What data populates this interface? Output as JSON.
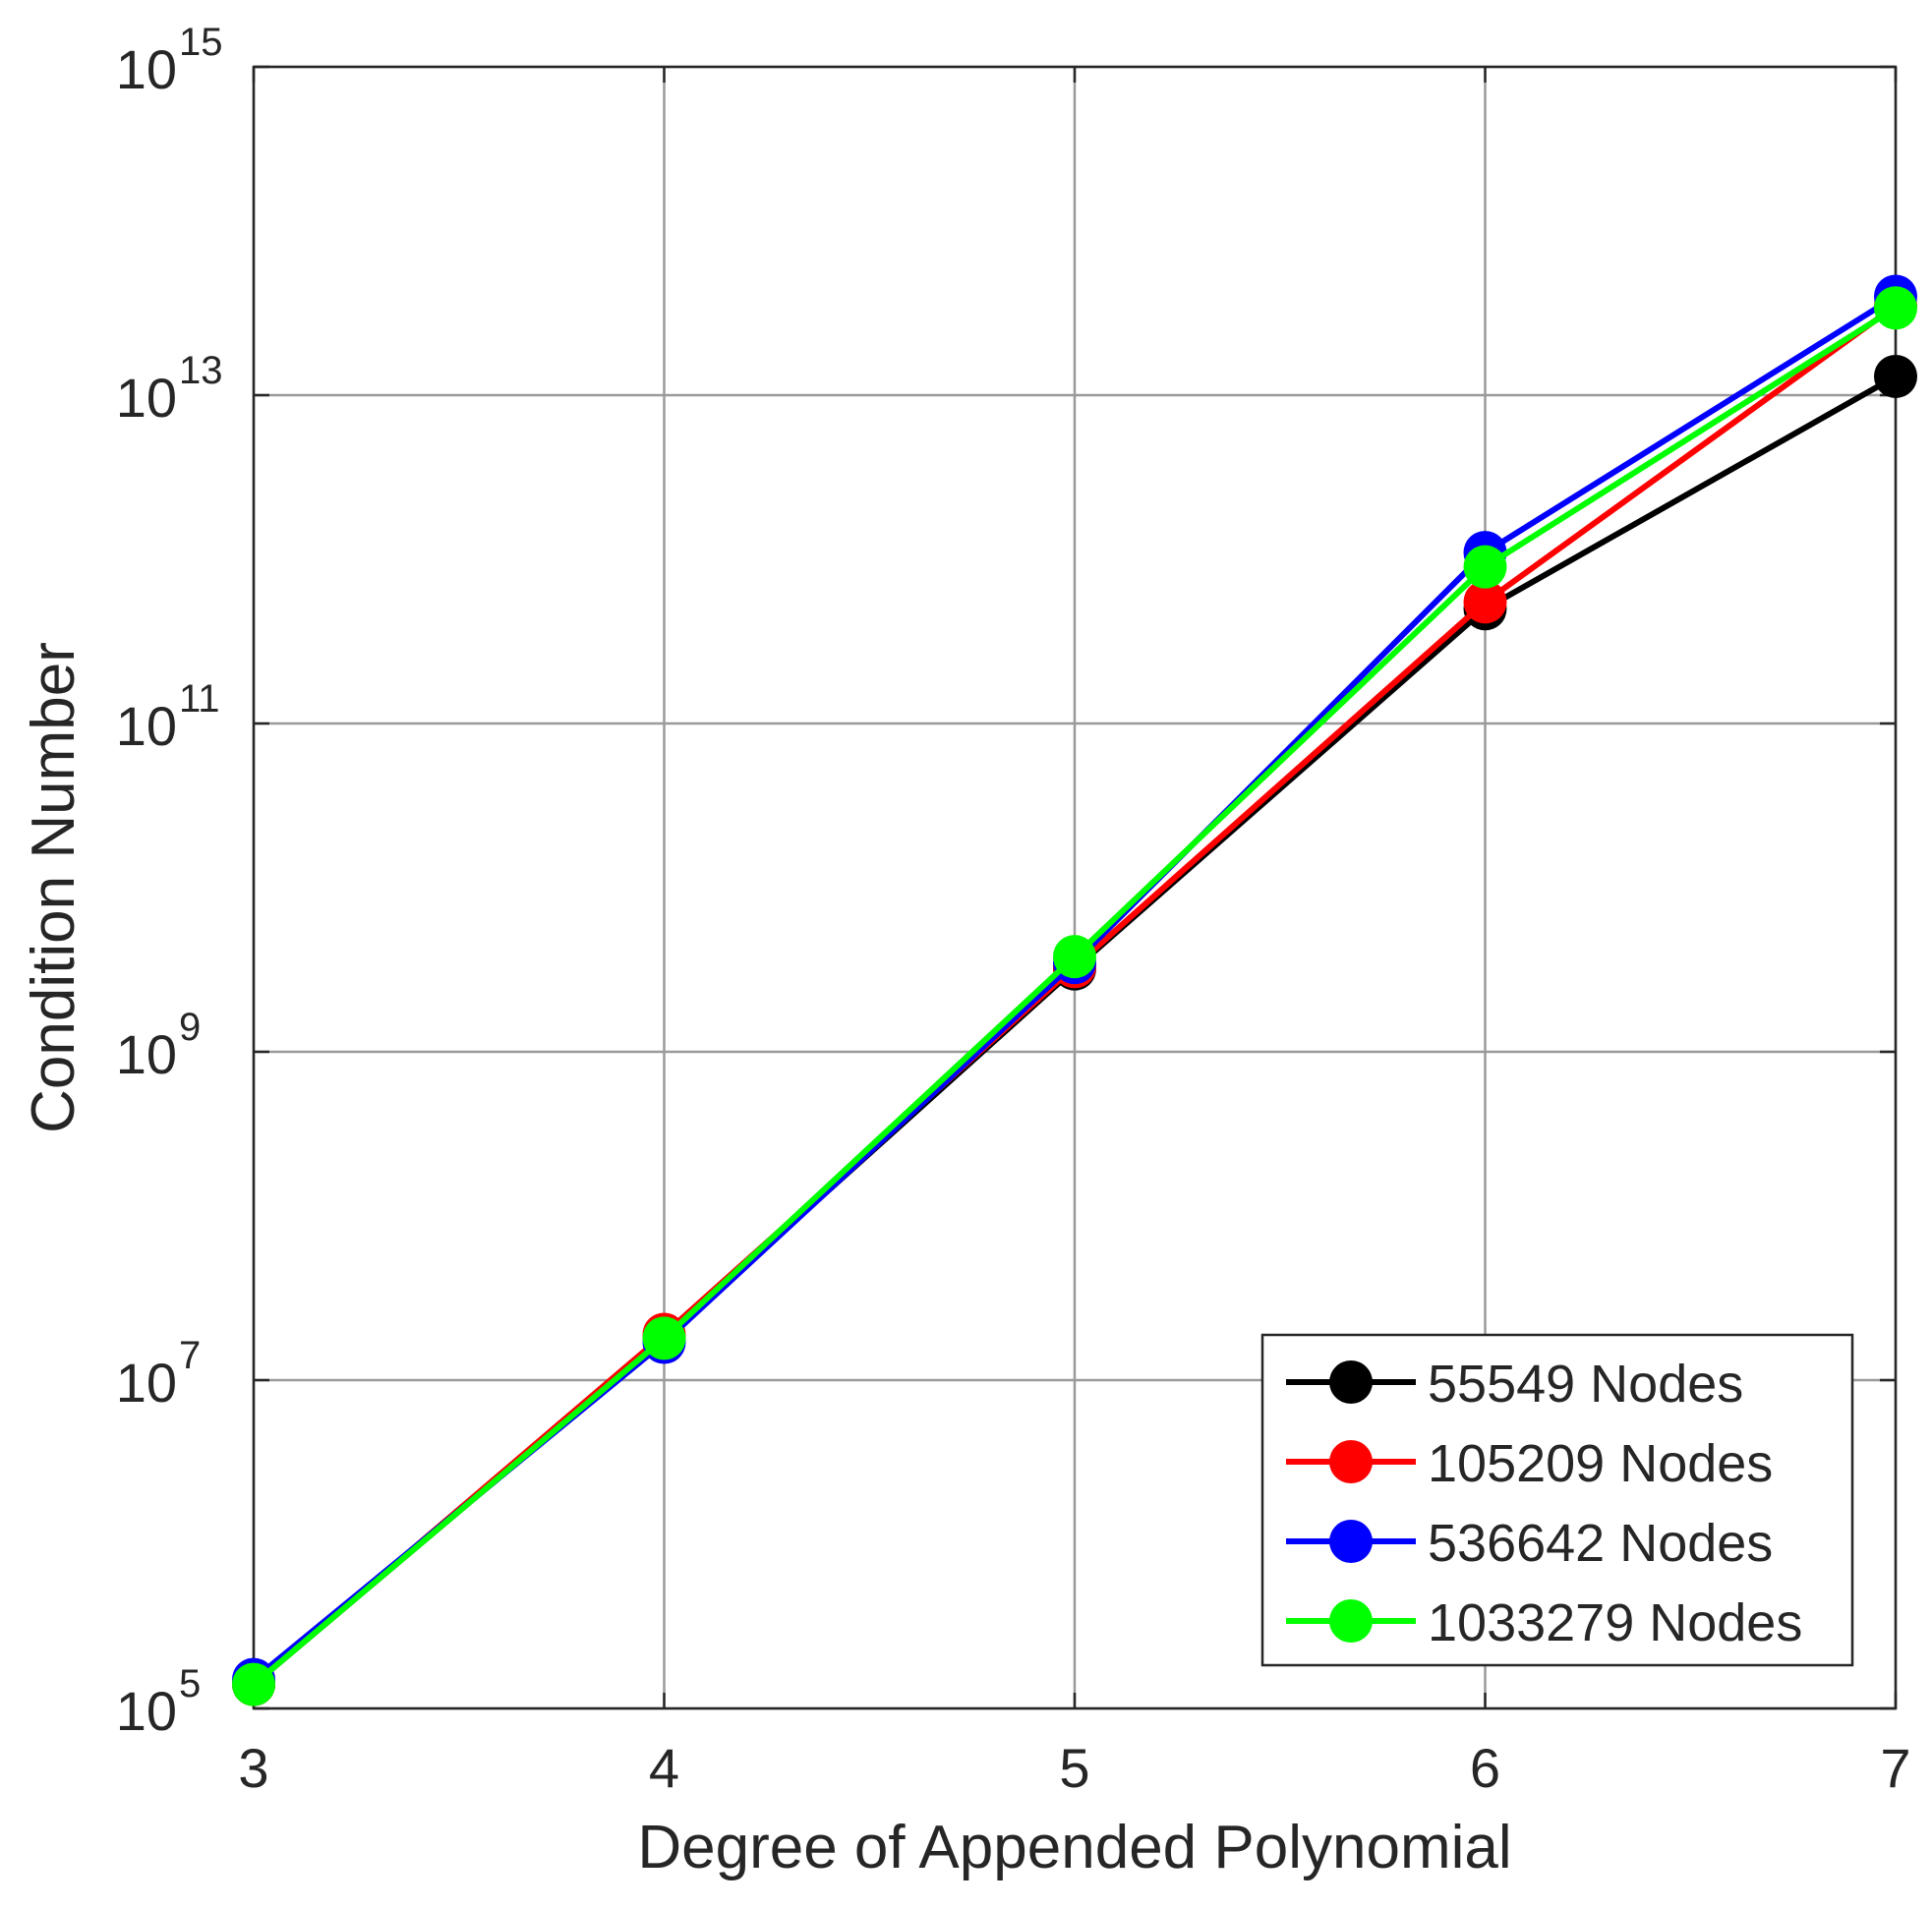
{
  "chart_data": {
    "type": "line",
    "title": "",
    "xlabel": "Degree of Appended Polynomial",
    "ylabel": "Condition Number",
    "x": [
      3,
      4,
      5,
      6,
      7
    ],
    "xticks": [
      3,
      4,
      5,
      6,
      7
    ],
    "xlim": [
      3,
      7
    ],
    "yscale": "log",
    "ylim": [
      100000,
      1000000000000000
    ],
    "yticks": [
      {
        "value": 100000,
        "base": "10",
        "exp": "5"
      },
      {
        "value": 10000000,
        "base": "10",
        "exp": "7"
      },
      {
        "value": 1000000000,
        "base": "10",
        "exp": "9"
      },
      {
        "value": 100000000000,
        "base": "10",
        "exp": "11"
      },
      {
        "value": 10000000000000,
        "base": "10",
        "exp": "13"
      },
      {
        "value": 1000000000000000,
        "base": "10",
        "exp": "15"
      }
    ],
    "grid": true,
    "legend_position": "bottom-right",
    "series": [
      {
        "name": "55549 Nodes",
        "color": "#000000",
        "values": [
          140000,
          18000000,
          3200000000,
          500000000000,
          13000000000000
        ]
      },
      {
        "name": "105209 Nodes",
        "color": "#ff0000",
        "values": [
          140000,
          19000000,
          3300000000,
          550000000000,
          35000000000000
        ]
      },
      {
        "name": "536642 Nodes",
        "color": "#0000ff",
        "values": [
          150000,
          17000000,
          3500000000,
          1100000000000,
          40000000000000
        ]
      },
      {
        "name": "1033279 Nodes",
        "color": "#00ff00",
        "values": [
          140000,
          18000000,
          3800000000,
          900000000000,
          34000000000000
        ]
      }
    ]
  }
}
